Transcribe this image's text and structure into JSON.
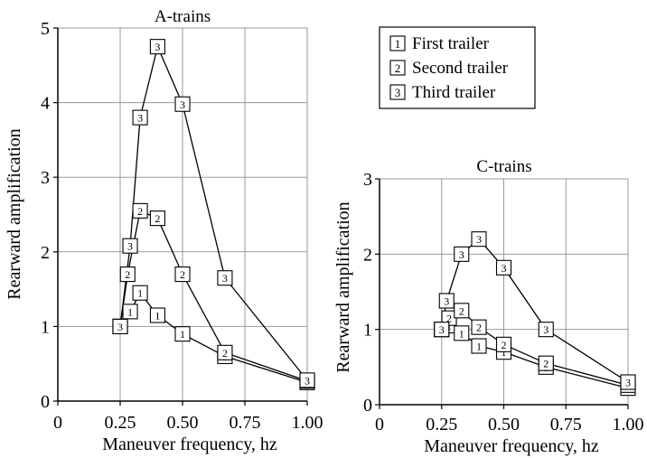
{
  "chart_data": [
    {
      "type": "line",
      "title": "A-trains",
      "xlabel": "Maneuver frequency, hz",
      "ylabel": "Rearward amplification",
      "xlim": [
        0,
        1.0
      ],
      "ylim": [
        0,
        5
      ],
      "x_ticks": [
        "0",
        "0.25",
        "0.50",
        "0.75",
        "1.00"
      ],
      "y_ticks": [
        "0",
        "1",
        "2",
        "3",
        "4",
        "5"
      ],
      "grid": true,
      "marker_style": "square boxes labeled with series number",
      "series": [
        {
          "name": "First trailer",
          "marker": "1",
          "x": [
            0.25,
            0.29,
            0.33,
            0.4,
            0.5,
            0.67,
            1.0
          ],
          "y": [
            1.0,
            1.2,
            1.45,
            1.15,
            0.9,
            0.6,
            0.25
          ]
        },
        {
          "name": "Second trailer",
          "marker": "2",
          "x": [
            0.25,
            0.28,
            0.33,
            0.4,
            0.5,
            0.67,
            1.0
          ],
          "y": [
            1.0,
            1.7,
            2.55,
            2.45,
            1.7,
            0.65,
            0.27
          ]
        },
        {
          "name": "Third trailer",
          "marker": "3",
          "x": [
            0.25,
            0.29,
            0.33,
            0.4,
            0.5,
            0.67,
            1.0
          ],
          "y": [
            1.0,
            2.08,
            3.8,
            4.75,
            3.98,
            1.65,
            0.28
          ]
        }
      ]
    },
    {
      "type": "line",
      "title": "C-trains",
      "xlabel": "Maneuver frequency, hz",
      "ylabel": "Rearward amplification",
      "xlim": [
        0,
        1.0
      ],
      "ylim": [
        0,
        3
      ],
      "x_ticks": [
        "0",
        "0.25",
        "0.50",
        "0.75",
        "1.00"
      ],
      "y_ticks": [
        "0",
        "1",
        "2",
        "3"
      ],
      "grid": true,
      "marker_style": "square boxes labeled with series number",
      "series": [
        {
          "name": "First trailer",
          "marker": "1",
          "x": [
            0.25,
            0.28,
            0.33,
            0.4,
            0.5,
            0.67,
            1.0
          ],
          "y": [
            1.0,
            1.05,
            0.95,
            0.78,
            0.7,
            0.5,
            0.22
          ]
        },
        {
          "name": "Second trailer",
          "marker": "2",
          "x": [
            0.25,
            0.28,
            0.33,
            0.4,
            0.5,
            0.67,
            1.0
          ],
          "y": [
            1.0,
            1.15,
            1.25,
            1.03,
            0.8,
            0.55,
            0.26
          ]
        },
        {
          "name": "Third trailer",
          "marker": "3",
          "x": [
            0.25,
            0.27,
            0.33,
            0.4,
            0.5,
            0.67,
            1.0
          ],
          "y": [
            1.0,
            1.38,
            2.0,
            2.2,
            1.82,
            1.0,
            0.3
          ]
        }
      ]
    }
  ],
  "legend": {
    "placement": "top-center",
    "items": [
      {
        "marker": "1",
        "label": "First trailer"
      },
      {
        "marker": "2",
        "label": "Second trailer"
      },
      {
        "marker": "3",
        "label": "Third trailer"
      }
    ]
  },
  "colors": {
    "ink": "#000000",
    "grid": "#9a9a9a",
    "background": "#ffffff"
  }
}
